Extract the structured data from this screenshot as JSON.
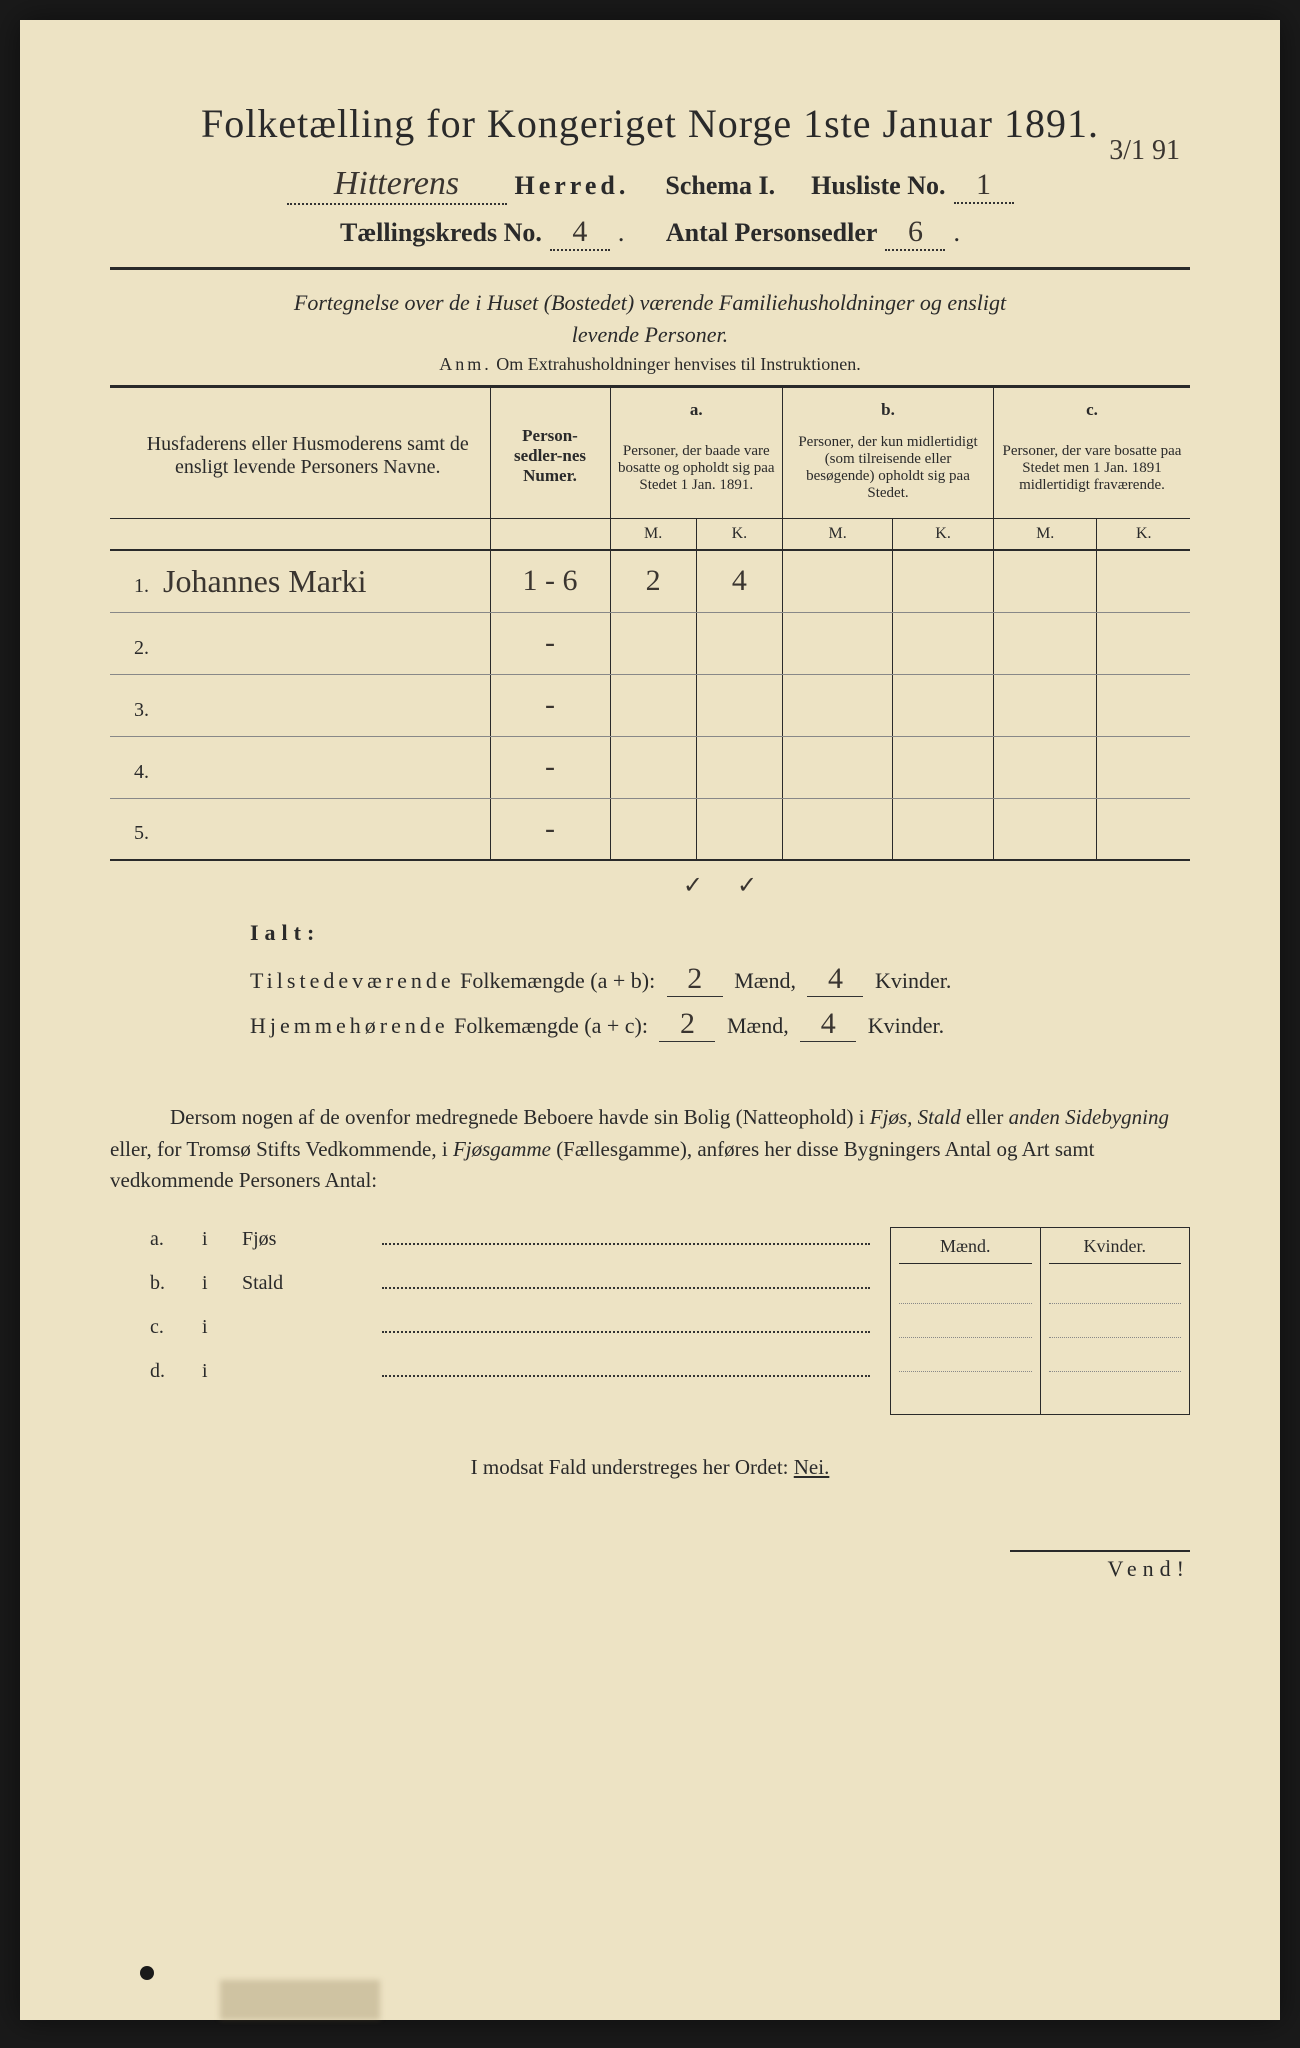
{
  "colors": {
    "paper": "#ede3c4",
    "ink": "#2a2a2a",
    "handwriting": "#3a3530",
    "page_bg": "#1a1a1a"
  },
  "title": "Folketælling for Kongeriget Norge 1ste Januar 1891.",
  "header": {
    "herred_value": "Hitterens",
    "herred_label": "Herred.",
    "schema_label": "Schema I.",
    "husliste_label": "Husliste No.",
    "husliste_value": "1",
    "date_corner": "3/1 91",
    "kreds_label": "Tællingskreds No.",
    "kreds_value": "4",
    "antal_label": "Antal Personsedler",
    "antal_value": "6"
  },
  "subtitle1": "Fortegnelse over de i Huset (Bostedet) værende Familiehusholdninger og ensligt",
  "subtitle2": "levende Personer.",
  "anm_label": "Anm.",
  "anm_text": "Om Extrahusholdninger henvises til Instruktionen.",
  "table": {
    "col_names": "Husfaderens eller Husmoderens samt de ensligt levende Personers Navne.",
    "col_nums": "Person-sedler-nes Numer.",
    "col_a_top": "a.",
    "col_a": "Personer, der baade vare bosatte og opholdt sig paa Stedet 1 Jan. 1891.",
    "col_b_top": "b.",
    "col_b": "Personer, der kun midlertidigt (som tilreisende eller besøgende) opholdt sig paa Stedet.",
    "col_c_top": "c.",
    "col_c": "Personer, der vare bosatte paa Stedet men 1 Jan. 1891 midlertidigt fraværende.",
    "mk_m": "M.",
    "mk_k": "K.",
    "rows": [
      {
        "n": "1.",
        "name": "Johannes Marki",
        "nums": "1 - 6",
        "am": "2",
        "ak": "4",
        "bm": "",
        "bk": "",
        "cm": "",
        "ck": ""
      },
      {
        "n": "2.",
        "name": "",
        "nums": "-",
        "am": "",
        "ak": "",
        "bm": "",
        "bk": "",
        "cm": "",
        "ck": ""
      },
      {
        "n": "3.",
        "name": "",
        "nums": "-",
        "am": "",
        "ak": "",
        "bm": "",
        "bk": "",
        "cm": "",
        "ck": ""
      },
      {
        "n": "4.",
        "name": "",
        "nums": "-",
        "am": "",
        "ak": "",
        "bm": "",
        "bk": "",
        "cm": "",
        "ck": ""
      },
      {
        "n": "5.",
        "name": "",
        "nums": "-",
        "am": "",
        "ak": "",
        "bm": "",
        "bk": "",
        "cm": "",
        "ck": ""
      }
    ],
    "check_a": "✓",
    "check_b": "✓"
  },
  "ialt": {
    "label": "Ialt:",
    "line1_a": "Tilstedeværende",
    "line1_b": "Folkemængde (a + b):",
    "line2_a": "Hjemmehørende",
    "line2_b": "Folkemængde (a + c):",
    "maend": "Mænd,",
    "kvinder": "Kvinder.",
    "v1m": "2",
    "v1k": "4",
    "v2m": "2",
    "v2k": "4"
  },
  "para_text": "Dersom nogen af de ovenfor medregnede Beboere havde sin Bolig (Natteophold) i Fjøs, Stald eller anden Sidebygning eller, for Tromsø Stifts Vedkommende, i Fjøsgamme (Fællesgamme), anføres her disse Bygningers Antal og Art samt vedkommende Personers Antal:",
  "sub": {
    "maend": "Mænd.",
    "kvinder": "Kvinder.",
    "rows": [
      {
        "a": "a.",
        "i": "i",
        "label": "Fjøs"
      },
      {
        "a": "b.",
        "i": "i",
        "label": "Stald"
      },
      {
        "a": "c.",
        "i": "i",
        "label": ""
      },
      {
        "a": "d.",
        "i": "i",
        "label": ""
      }
    ]
  },
  "modsat": "I modsat Fald understreges her Ordet:",
  "nei": "Nei.",
  "vend": "Vend!"
}
